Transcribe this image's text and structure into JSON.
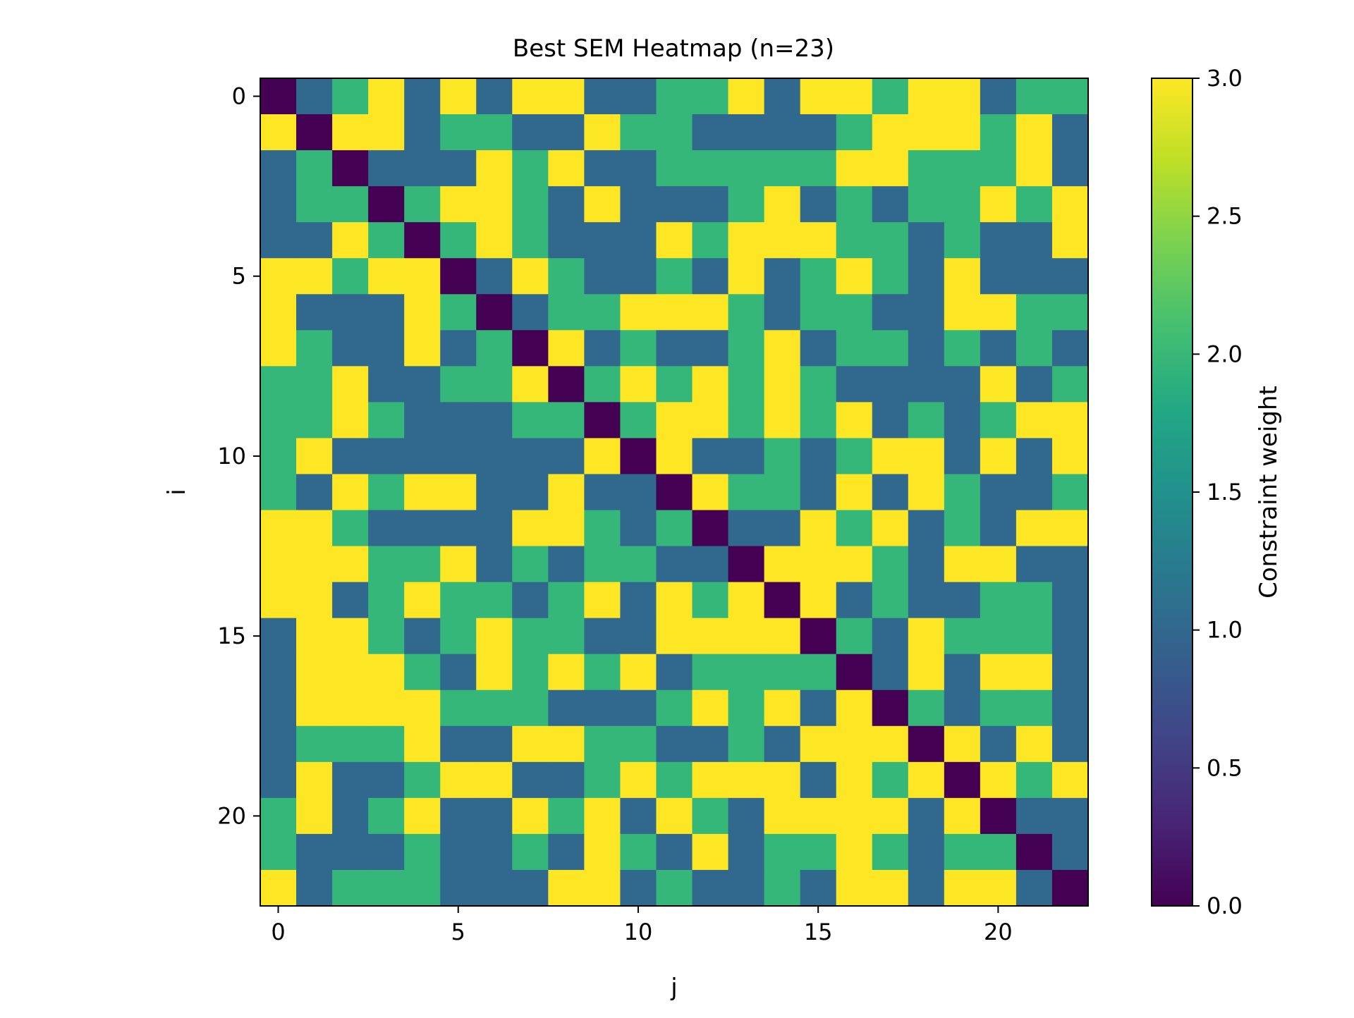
{
  "chart_data": {
    "type": "heatmap",
    "title": "Best SEM Heatmap (n=23)",
    "xlabel": "j",
    "ylabel": "i",
    "colorbar_label": "Constraint weight",
    "colormap": "viridis",
    "vmin": 0.0,
    "vmax": 3.0,
    "n": 23,
    "x_ticks": [
      0,
      5,
      10,
      15,
      20
    ],
    "y_ticks": [
      0,
      5,
      10,
      15,
      20
    ],
    "colorbar_ticks": [
      "0.0",
      "0.5",
      "1.0",
      "1.5",
      "2.0",
      "2.5",
      "3.0"
    ],
    "value_colors": {
      "0": "#440154",
      "1": "#31688e",
      "2": "#35b779",
      "3": "#fde725"
    },
    "matrix": [
      [
        0,
        1,
        2,
        3,
        1,
        3,
        1,
        3,
        3,
        1,
        1,
        2,
        2,
        3,
        1,
        3,
        3,
        2,
        3,
        3,
        1,
        2,
        2
      ],
      [
        3,
        0,
        3,
        3,
        1,
        2,
        2,
        1,
        1,
        3,
        2,
        2,
        1,
        1,
        1,
        1,
        2,
        3,
        3,
        3,
        2,
        3,
        1
      ],
      [
        1,
        2,
        0,
        1,
        1,
        1,
        3,
        2,
        3,
        1,
        1,
        2,
        2,
        2,
        2,
        2,
        3,
        3,
        2,
        2,
        2,
        3,
        1
      ],
      [
        1,
        2,
        2,
        0,
        2,
        3,
        3,
        2,
        1,
        3,
        1,
        1,
        1,
        2,
        3,
        1,
        2,
        1,
        2,
        2,
        3,
        2,
        3
      ],
      [
        1,
        1,
        3,
        2,
        0,
        2,
        3,
        2,
        1,
        1,
        1,
        3,
        2,
        3,
        3,
        3,
        2,
        2,
        1,
        2,
        1,
        1,
        3
      ],
      [
        3,
        3,
        2,
        3,
        3,
        0,
        1,
        3,
        2,
        1,
        1,
        2,
        1,
        3,
        1,
        2,
        3,
        2,
        1,
        3,
        1,
        1,
        1
      ],
      [
        3,
        1,
        1,
        1,
        3,
        2,
        0,
        1,
        2,
        2,
        3,
        3,
        3,
        2,
        1,
        2,
        2,
        1,
        1,
        3,
        3,
        2,
        2
      ],
      [
        3,
        2,
        1,
        1,
        3,
        1,
        2,
        0,
        3,
        1,
        2,
        1,
        1,
        2,
        3,
        1,
        2,
        2,
        1,
        2,
        1,
        2,
        1
      ],
      [
        2,
        2,
        3,
        1,
        1,
        2,
        2,
        3,
        0,
        2,
        3,
        2,
        3,
        2,
        3,
        2,
        1,
        1,
        1,
        1,
        3,
        1,
        2
      ],
      [
        2,
        2,
        3,
        2,
        1,
        1,
        1,
        2,
        2,
        0,
        2,
        3,
        3,
        2,
        3,
        2,
        3,
        1,
        2,
        1,
        2,
        3,
        3
      ],
      [
        2,
        3,
        1,
        1,
        1,
        1,
        1,
        1,
        1,
        3,
        0,
        3,
        1,
        1,
        2,
        1,
        2,
        3,
        3,
        1,
        3,
        1,
        3
      ],
      [
        2,
        1,
        3,
        2,
        3,
        3,
        1,
        1,
        3,
        1,
        1,
        0,
        3,
        2,
        2,
        1,
        3,
        1,
        3,
        2,
        1,
        1,
        2
      ],
      [
        3,
        3,
        2,
        1,
        1,
        1,
        1,
        3,
        3,
        2,
        1,
        2,
        0,
        1,
        1,
        3,
        2,
        3,
        1,
        2,
        1,
        3,
        3
      ],
      [
        3,
        3,
        3,
        2,
        2,
        3,
        1,
        2,
        1,
        2,
        2,
        1,
        1,
        0,
        3,
        3,
        3,
        2,
        1,
        3,
        3,
        1,
        1
      ],
      [
        3,
        3,
        1,
        2,
        3,
        2,
        2,
        1,
        2,
        3,
        1,
        3,
        2,
        3,
        0,
        3,
        1,
        2,
        1,
        1,
        2,
        2,
        1
      ],
      [
        1,
        3,
        3,
        2,
        1,
        2,
        3,
        2,
        2,
        1,
        1,
        3,
        3,
        3,
        3,
        0,
        2,
        1,
        3,
        2,
        2,
        2,
        1
      ],
      [
        1,
        3,
        3,
        3,
        2,
        1,
        3,
        2,
        3,
        2,
        3,
        1,
        2,
        2,
        2,
        2,
        0,
        1,
        3,
        1,
        3,
        3,
        1
      ],
      [
        1,
        3,
        3,
        3,
        3,
        2,
        2,
        2,
        1,
        1,
        1,
        2,
        3,
        2,
        3,
        1,
        3,
        0,
        2,
        1,
        2,
        2,
        1
      ],
      [
        1,
        2,
        2,
        2,
        3,
        1,
        1,
        3,
        3,
        2,
        2,
        1,
        1,
        2,
        1,
        3,
        3,
        3,
        0,
        3,
        1,
        3,
        1
      ],
      [
        1,
        3,
        1,
        1,
        2,
        3,
        3,
        1,
        1,
        2,
        3,
        2,
        3,
        3,
        3,
        1,
        3,
        2,
        3,
        0,
        3,
        2,
        3
      ],
      [
        2,
        3,
        1,
        2,
        3,
        1,
        1,
        3,
        2,
        3,
        1,
        3,
        2,
        1,
        3,
        3,
        3,
        3,
        1,
        3,
        0,
        1,
        1
      ],
      [
        2,
        1,
        1,
        1,
        2,
        1,
        1,
        2,
        1,
        3,
        2,
        1,
        3,
        1,
        2,
        2,
        3,
        2,
        1,
        2,
        2,
        0,
        1
      ],
      [
        3,
        1,
        2,
        2,
        2,
        1,
        1,
        1,
        3,
        3,
        1,
        2,
        1,
        1,
        2,
        1,
        3,
        3,
        1,
        3,
        3,
        1,
        0
      ]
    ]
  }
}
